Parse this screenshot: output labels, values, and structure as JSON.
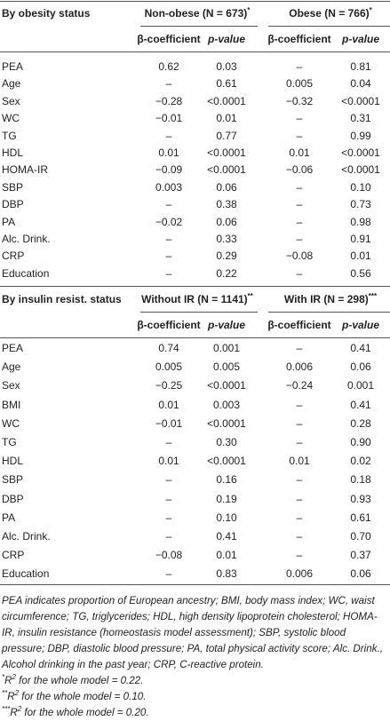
{
  "sections": [
    {
      "title": "By obesity status",
      "groups": [
        {
          "label": "Non-obese (N = 673)",
          "mark": "*"
        },
        {
          "label": "Obese (N = 766)",
          "mark": "*"
        }
      ],
      "columns": [
        "β-coefficient",
        "p-value",
        "β-coefficient",
        "p-value"
      ],
      "rows": [
        [
          "PEA",
          "0.62",
          "0.03",
          "–",
          "0.81"
        ],
        [
          "Age",
          "–",
          "0.61",
          "0.005",
          "0.04"
        ],
        [
          "Sex",
          "−0.28",
          "<0.0001",
          "−0.32",
          "<0.0001"
        ],
        [
          "WC",
          "−0.01",
          "0.01",
          "–",
          "0.31"
        ],
        [
          "TG",
          "–",
          "0.77",
          "–",
          "0.99"
        ],
        [
          "HDL",
          "0.01",
          "<0.0001",
          "0.01",
          "<0.0001"
        ],
        [
          "HOMA-IR",
          "−0.09",
          "<0.0001",
          "−0.06",
          "<0.0001"
        ],
        [
          "SBP",
          "0.003",
          "0.06",
          "–",
          "0.10"
        ],
        [
          "DBP",
          "–",
          "0.38",
          "–",
          "0.73"
        ],
        [
          "PA",
          "−0.02",
          "0.06",
          "–",
          "0.98"
        ],
        [
          "Alc. Drink.",
          "–",
          "0.33",
          "–",
          "0.91"
        ],
        [
          "CRP",
          "–",
          "0.29",
          "−0.08",
          "0.01"
        ],
        [
          "Education",
          "–",
          "0.22",
          "–",
          "0.56"
        ]
      ]
    },
    {
      "title": "By insulin resist. status",
      "groups": [
        {
          "label": "Without IR (N = 1141)",
          "mark": "**"
        },
        {
          "label": "With IR (N = 298)",
          "mark": "***"
        }
      ],
      "columns": [
        "β-coefficient",
        "p-value",
        "β-coefficient",
        "p-value"
      ],
      "rows": [
        [
          "PEA",
          "0.74",
          "0.001",
          "–",
          "0.41"
        ],
        [
          "Age",
          "0.005",
          "0.005",
          "0.006",
          "0.06"
        ],
        [
          "Sex",
          "−0.25",
          "<0.0001",
          "−0.24",
          "0.001"
        ],
        [
          "BMI",
          "0.01",
          "0.003",
          "–",
          "0.41"
        ],
        [
          "WC",
          "−0.01",
          "<0.0001",
          "–",
          "0.28"
        ],
        [
          "TG",
          "–",
          "0.30",
          "–",
          "0.90"
        ],
        [
          "HDL",
          "0.01",
          "<0.0001",
          "0.01",
          "0.02"
        ],
        [
          "SBP",
          "–",
          "0.16",
          "–",
          "0.18"
        ],
        [
          "DBP",
          "–",
          "0.19",
          "–",
          "0.93"
        ],
        [
          "PA",
          "–",
          "0.10",
          "–",
          "0.61"
        ],
        [
          "Alc. Drink.",
          "–",
          "0.41",
          "–",
          "0.70"
        ],
        [
          "CRP",
          "−0.08",
          "0.01",
          "–",
          "0.37"
        ],
        [
          "Education",
          "–",
          "0.83",
          "0.006",
          "0.06"
        ]
      ]
    }
  ],
  "note": "PEA indicates proportion of European ancestry; BMI, body mass index; WC, waist circumference; TG, triglycerides; HDL, high density lipoprotein cholesterol; HOMA-IR, insulin resistance (homeostasis model assessment); SBP, systolic blood pressure; DBP, diastolic blood pressure; PA, total physical activity score; Alc. Drink., Alcohol drinking in the past year; CRP, C-reactive protein.",
  "footnotes": [
    {
      "mark": "*",
      "symbol": "R",
      "sup": "2",
      "text": " for the whole model = 0.22."
    },
    {
      "mark": "**",
      "symbol": "R",
      "sup": "2",
      "text": " for the whole model = 0.10."
    },
    {
      "mark": "***",
      "symbol": "R",
      "sup": "2",
      "text": " for the whole model = 0.20."
    }
  ]
}
